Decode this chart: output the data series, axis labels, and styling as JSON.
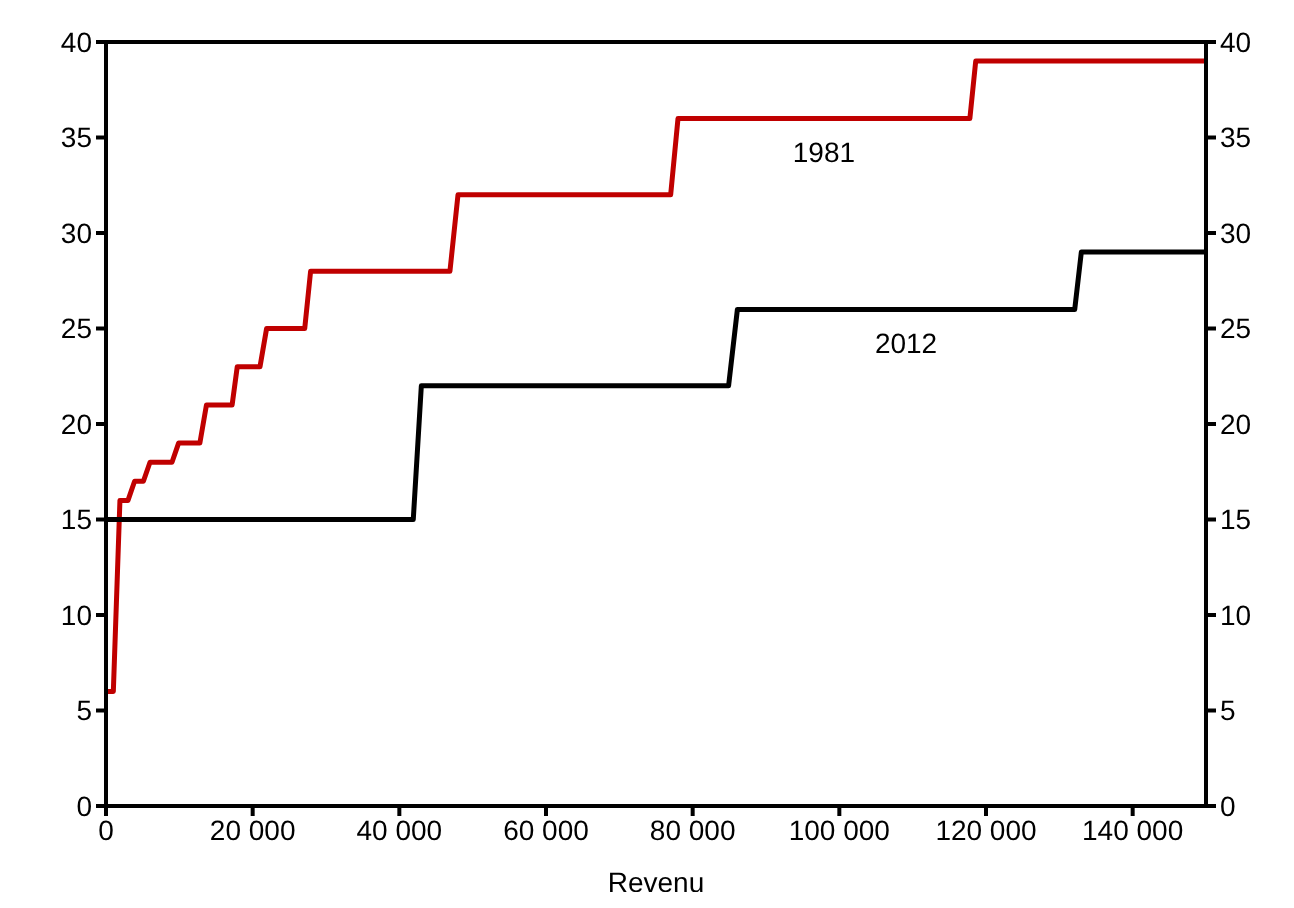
{
  "chart_data": {
    "type": "line",
    "xlabel": "Revenu",
    "xlim": [
      0,
      150000
    ],
    "xticks": [
      0,
      {
        "value": 20000,
        "label": "20 000"
      },
      {
        "value": 40000,
        "label": "40 000"
      },
      {
        "value": 60000,
        "label": "60 000"
      },
      {
        "value": 80000,
        "label": "80 000"
      },
      {
        "value": 100000,
        "label": "100 000"
      },
      {
        "value": 120000,
        "label": "120 000"
      },
      {
        "value": 140000,
        "label": "140 000"
      }
    ],
    "ylim": [
      0,
      40
    ],
    "yticks": [
      0,
      5,
      10,
      15,
      20,
      25,
      30,
      35,
      40
    ],
    "y2lim": [
      0,
      40
    ],
    "y2ticks": [
      0,
      5,
      10,
      15,
      20,
      25,
      30,
      35,
      40
    ],
    "grid": false,
    "legend": false,
    "marker": "none",
    "line_style": "solid",
    "series": [
      {
        "name": "1981",
        "color": "#c00000",
        "x": [
          0,
          1000,
          1900,
          3000,
          3900,
          5100,
          6000,
          9000,
          9900,
          12800,
          13700,
          17200,
          17900,
          21000,
          21900,
          27100,
          27900,
          46900,
          48000,
          77000,
          78000,
          117800,
          118600,
          150000
        ],
        "values": [
          6,
          6,
          16,
          16,
          17,
          17,
          18,
          18,
          19,
          19,
          21,
          21,
          23,
          23,
          25,
          25,
          28,
          28,
          32,
          32,
          36,
          36,
          39,
          39
        ]
      },
      {
        "name": "2012",
        "color": "#000000",
        "x": [
          0,
          41900,
          43000,
          84900,
          86100,
          132100,
          133000,
          150000
        ],
        "values": [
          15,
          15,
          22,
          22,
          26,
          26,
          29,
          29
        ]
      }
    ]
  }
}
